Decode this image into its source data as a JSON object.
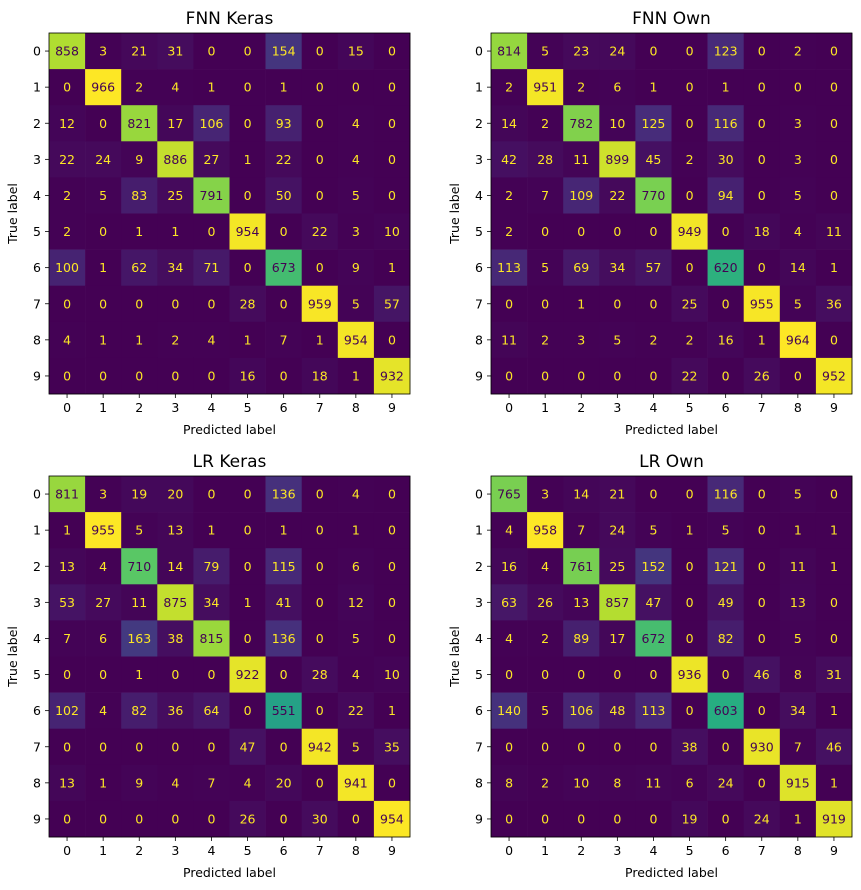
{
  "chart_data": [
    {
      "type": "heatmap",
      "title": "FNN Keras",
      "xlabel": "Predicted label",
      "ylabel": "True label",
      "x_ticks": [
        "0",
        "1",
        "2",
        "3",
        "4",
        "5",
        "6",
        "7",
        "8",
        "9"
      ],
      "y_ticks": [
        "0",
        "1",
        "2",
        "3",
        "4",
        "5",
        "6",
        "7",
        "8",
        "9"
      ],
      "colormap": "viridis",
      "values": [
        [
          858,
          3,
          21,
          31,
          0,
          0,
          154,
          0,
          15,
          0
        ],
        [
          0,
          966,
          2,
          4,
          1,
          0,
          1,
          0,
          0,
          0
        ],
        [
          12,
          0,
          821,
          17,
          106,
          0,
          93,
          0,
          4,
          0
        ],
        [
          22,
          24,
          9,
          886,
          27,
          1,
          22,
          0,
          4,
          0
        ],
        [
          2,
          5,
          83,
          25,
          791,
          0,
          50,
          0,
          5,
          0
        ],
        [
          2,
          0,
          1,
          1,
          0,
          954,
          0,
          22,
          3,
          10
        ],
        [
          100,
          1,
          62,
          34,
          71,
          0,
          673,
          0,
          9,
          1
        ],
        [
          0,
          0,
          0,
          0,
          0,
          28,
          0,
          959,
          5,
          57
        ],
        [
          4,
          1,
          1,
          2,
          4,
          1,
          7,
          1,
          954,
          0
        ],
        [
          0,
          0,
          0,
          0,
          0,
          16,
          0,
          18,
          1,
          932
        ]
      ]
    },
    {
      "type": "heatmap",
      "title": "FNN Own",
      "xlabel": "Predicted label",
      "ylabel": "True label",
      "x_ticks": [
        "0",
        "1",
        "2",
        "3",
        "4",
        "5",
        "6",
        "7",
        "8",
        "9"
      ],
      "y_ticks": [
        "0",
        "1",
        "2",
        "3",
        "4",
        "5",
        "6",
        "7",
        "8",
        "9"
      ],
      "colormap": "viridis",
      "values": [
        [
          814,
          5,
          23,
          24,
          0,
          0,
          123,
          0,
          2,
          0
        ],
        [
          2,
          951,
          2,
          6,
          1,
          0,
          1,
          0,
          0,
          0
        ],
        [
          14,
          2,
          782,
          10,
          125,
          0,
          116,
          0,
          3,
          0
        ],
        [
          42,
          28,
          11,
          899,
          45,
          2,
          30,
          0,
          3,
          0
        ],
        [
          2,
          7,
          109,
          22,
          770,
          0,
          94,
          0,
          5,
          0
        ],
        [
          2,
          0,
          0,
          0,
          0,
          949,
          0,
          18,
          4,
          11
        ],
        [
          113,
          5,
          69,
          34,
          57,
          0,
          620,
          0,
          14,
          1
        ],
        [
          0,
          0,
          1,
          0,
          0,
          25,
          0,
          955,
          5,
          36
        ],
        [
          11,
          2,
          3,
          5,
          2,
          2,
          16,
          1,
          964,
          0
        ],
        [
          0,
          0,
          0,
          0,
          0,
          22,
          0,
          26,
          0,
          952
        ]
      ]
    },
    {
      "type": "heatmap",
      "title": "LR Keras",
      "xlabel": "Predicted label",
      "ylabel": "True label",
      "x_ticks": [
        "0",
        "1",
        "2",
        "3",
        "4",
        "5",
        "6",
        "7",
        "8",
        "9"
      ],
      "y_ticks": [
        "0",
        "1",
        "2",
        "3",
        "4",
        "5",
        "6",
        "7",
        "8",
        "9"
      ],
      "colormap": "viridis",
      "values": [
        [
          811,
          3,
          19,
          20,
          0,
          0,
          136,
          0,
          4,
          0
        ],
        [
          1,
          955,
          5,
          13,
          1,
          0,
          1,
          0,
          1,
          0
        ],
        [
          13,
          4,
          710,
          14,
          79,
          0,
          115,
          0,
          6,
          0
        ],
        [
          53,
          27,
          11,
          875,
          34,
          1,
          41,
          0,
          12,
          0
        ],
        [
          7,
          6,
          163,
          38,
          815,
          0,
          136,
          0,
          5,
          0
        ],
        [
          0,
          0,
          1,
          0,
          0,
          922,
          0,
          28,
          4,
          10
        ],
        [
          102,
          4,
          82,
          36,
          64,
          0,
          551,
          0,
          22,
          1
        ],
        [
          0,
          0,
          0,
          0,
          0,
          47,
          0,
          942,
          5,
          35
        ],
        [
          13,
          1,
          9,
          4,
          7,
          4,
          20,
          0,
          941,
          0
        ],
        [
          0,
          0,
          0,
          0,
          0,
          26,
          0,
          30,
          0,
          954
        ]
      ]
    },
    {
      "type": "heatmap",
      "title": "LR Own",
      "xlabel": "Predicted label",
      "ylabel": "True label",
      "x_ticks": [
        "0",
        "1",
        "2",
        "3",
        "4",
        "5",
        "6",
        "7",
        "8",
        "9"
      ],
      "y_ticks": [
        "0",
        "1",
        "2",
        "3",
        "4",
        "5",
        "6",
        "7",
        "8",
        "9"
      ],
      "colormap": "viridis",
      "values": [
        [
          765,
          3,
          14,
          21,
          0,
          0,
          116,
          0,
          5,
          0
        ],
        [
          4,
          958,
          7,
          24,
          5,
          1,
          5,
          0,
          1,
          1
        ],
        [
          16,
          4,
          761,
          25,
          152,
          0,
          121,
          0,
          11,
          1
        ],
        [
          63,
          26,
          13,
          857,
          47,
          0,
          49,
          0,
          13,
          0
        ],
        [
          4,
          2,
          89,
          17,
          672,
          0,
          82,
          0,
          5,
          0
        ],
        [
          0,
          0,
          0,
          0,
          0,
          936,
          0,
          46,
          8,
          31
        ],
        [
          140,
          5,
          106,
          48,
          113,
          0,
          603,
          0,
          34,
          1
        ],
        [
          0,
          0,
          0,
          0,
          0,
          38,
          0,
          930,
          7,
          46
        ],
        [
          8,
          2,
          10,
          8,
          11,
          6,
          24,
          0,
          915,
          1
        ],
        [
          0,
          0,
          0,
          0,
          0,
          19,
          0,
          24,
          1,
          919
        ]
      ]
    }
  ]
}
